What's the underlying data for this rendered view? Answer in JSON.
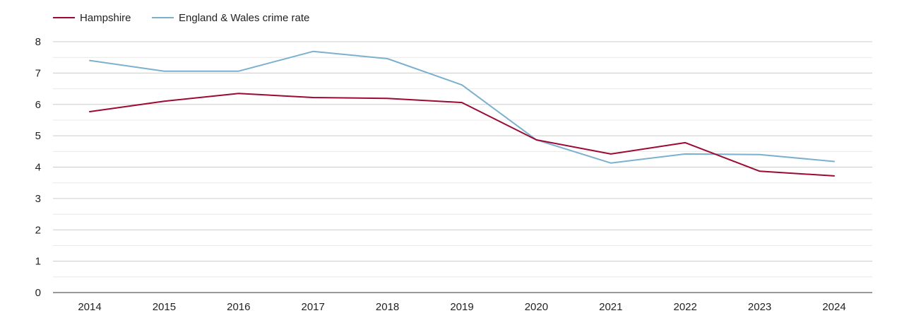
{
  "chart_data": {
    "type": "line",
    "title": "",
    "xlabel": "",
    "ylabel": "",
    "x": [
      "2014",
      "2015",
      "2016",
      "2017",
      "2018",
      "2019",
      "2020",
      "2021",
      "2022",
      "2023",
      "2024"
    ],
    "ylim": [
      0,
      8
    ],
    "yticks": [
      "0",
      "1",
      "2",
      "3",
      "4",
      "5",
      "6",
      "7",
      "8"
    ],
    "grid": true,
    "legend_position": "top-left",
    "series": [
      {
        "name": "Hampshire",
        "color": "#9b0a33",
        "values": [
          5.77,
          6.1,
          6.35,
          6.22,
          6.19,
          6.06,
          4.87,
          4.42,
          4.78,
          3.87,
          3.72
        ]
      },
      {
        "name": "England & Wales crime rate",
        "color": "#7bb0cf",
        "values": [
          7.4,
          7.06,
          7.06,
          7.69,
          7.46,
          6.62,
          4.87,
          4.13,
          4.42,
          4.4,
          4.18
        ]
      }
    ]
  }
}
